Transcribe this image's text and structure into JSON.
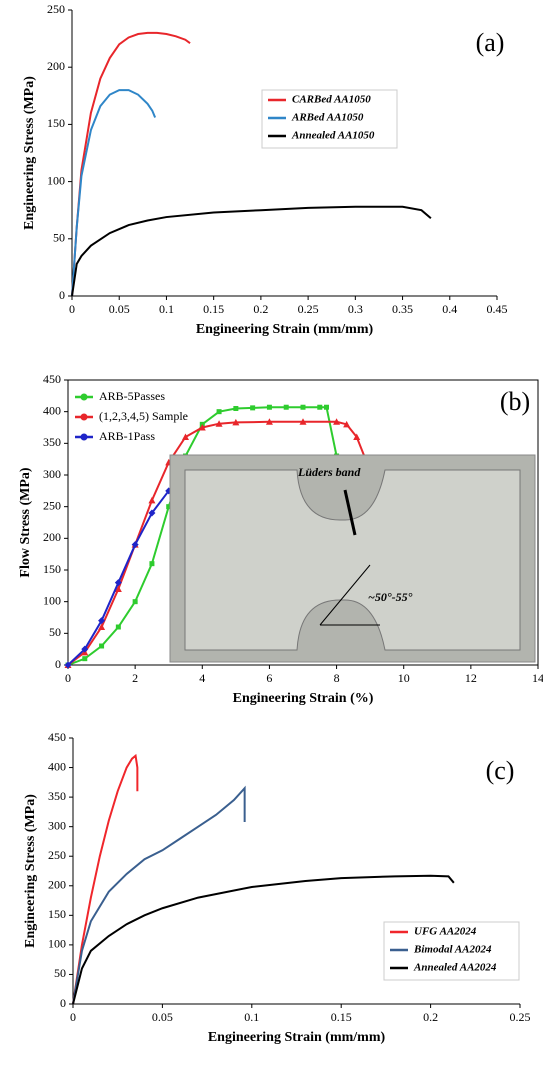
{
  "chart_data": [
    {
      "type": "line",
      "panel_label": "(a)",
      "x_label": "Engineering Strain (mm/mm)",
      "y_label": "Engineering Stress (MPa)",
      "xlim": [
        0,
        0.45
      ],
      "xticks": [
        0,
        0.05,
        0.1,
        0.15,
        0.2,
        0.25,
        0.3,
        0.35,
        0.4,
        0.45
      ],
      "ylim": [
        0,
        250
      ],
      "yticks": [
        0,
        50,
        100,
        150,
        200,
        250
      ],
      "legend": "upper center",
      "series": [
        {
          "name": "CARBed AA1050",
          "color": "#e8262b",
          "x": [
            0,
            0.005,
            0.01,
            0.02,
            0.03,
            0.04,
            0.05,
            0.06,
            0.07,
            0.08,
            0.09,
            0.1,
            0.11,
            0.12,
            0.125
          ],
          "values": [
            0,
            60,
            110,
            160,
            190,
            208,
            220,
            226,
            229,
            230,
            230,
            229,
            227,
            224,
            221
          ]
        },
        {
          "name": "ARBed AA1050",
          "color": "#2f86c8",
          "x": [
            0,
            0.005,
            0.01,
            0.02,
            0.03,
            0.04,
            0.05,
            0.06,
            0.07,
            0.08,
            0.085,
            0.088
          ],
          "values": [
            0,
            60,
            105,
            145,
            166,
            176,
            180,
            180,
            176,
            168,
            162,
            156
          ]
        },
        {
          "name": "Annealed AA1050",
          "color": "#000000",
          "x": [
            0,
            0.005,
            0.01,
            0.02,
            0.04,
            0.06,
            0.08,
            0.1,
            0.15,
            0.2,
            0.25,
            0.3,
            0.35,
            0.37,
            0.38
          ],
          "values": [
            0,
            28,
            35,
            44,
            55,
            62,
            66,
            69,
            73,
            75,
            77,
            78,
            78,
            75,
            68
          ]
        }
      ]
    },
    {
      "type": "line",
      "panel_label": "(b)",
      "x_label": "Engineering Strain (%)",
      "y_label": "Flow Stress (MPa)",
      "xlim": [
        0,
        14
      ],
      "xticks": [
        0,
        2,
        4,
        6,
        8,
        10,
        12,
        14
      ],
      "ylim": [
        0,
        450
      ],
      "yticks": [
        0,
        50,
        100,
        150,
        200,
        250,
        300,
        350,
        400,
        450
      ],
      "legend": "upper left",
      "inset_labels": [
        "Lüders band",
        "~50°-55°"
      ],
      "series": [
        {
          "name": "ARB-5Passes",
          "color": "#2ecc2e",
          "marker": "square",
          "x": [
            0,
            0.5,
            1,
            1.5,
            2,
            2.5,
            3,
            3.5,
            4,
            4.5,
            5,
            5.5,
            6,
            6.5,
            7,
            7.5,
            7.7,
            8,
            8.3
          ],
          "values": [
            0,
            10,
            30,
            60,
            100,
            160,
            250,
            330,
            380,
            400,
            405,
            406,
            407,
            407,
            407,
            407,
            407,
            330,
            250
          ]
        },
        {
          "name": "(1,2,3,4,5) Sample",
          "color": "#e8262b",
          "marker": "triangle",
          "x": [
            0,
            0.5,
            1,
            1.5,
            2,
            2.5,
            3,
            3.5,
            4,
            4.5,
            5,
            6,
            7,
            8,
            8.3,
            8.6,
            8.9,
            9.2
          ],
          "values": [
            0,
            20,
            60,
            120,
            190,
            260,
            320,
            360,
            375,
            381,
            383,
            384,
            384,
            384,
            380,
            360,
            320,
            280
          ]
        },
        {
          "name": "ARB-1Pass",
          "color": "#1f25c8",
          "marker": "diamond",
          "x": [
            0,
            0.5,
            1,
            1.5,
            2,
            2.5,
            3,
            3.5,
            4,
            5,
            6,
            7,
            8,
            9,
            9.5,
            10,
            10.3,
            10.5
          ],
          "values": [
            0,
            25,
            70,
            130,
            190,
            240,
            275,
            290,
            300,
            307,
            310,
            311,
            310,
            305,
            295,
            275,
            255,
            240
          ]
        }
      ]
    },
    {
      "type": "line",
      "panel_label": "(c)",
      "x_label": "Engineering Strain (mm/mm)",
      "y_label": "Engineering Stress (MPa)",
      "xlim": [
        0,
        0.25
      ],
      "xticks": [
        0,
        0.05,
        0.1,
        0.15,
        0.2,
        0.25
      ],
      "ylim": [
        0,
        450
      ],
      "yticks": [
        0,
        50,
        100,
        150,
        200,
        250,
        300,
        350,
        400,
        450
      ],
      "legend": "lower right",
      "series": [
        {
          "name": "UFG AA2024",
          "color": "#f0262b",
          "x": [
            0,
            0.005,
            0.01,
            0.015,
            0.02,
            0.025,
            0.03,
            0.033,
            0.035,
            0.036,
            0.036
          ],
          "values": [
            0,
            100,
            180,
            250,
            310,
            360,
            400,
            415,
            420,
            400,
            360
          ]
        },
        {
          "name": "Bimodal AA2024",
          "color": "#3a5f8f",
          "x": [
            0,
            0.005,
            0.01,
            0.02,
            0.03,
            0.04,
            0.05,
            0.06,
            0.07,
            0.08,
            0.09,
            0.096,
            0.096
          ],
          "values": [
            0,
            90,
            140,
            190,
            220,
            245,
            260,
            280,
            300,
            320,
            345,
            365,
            308
          ]
        },
        {
          "name": "Annealed AA2024",
          "color": "#000000",
          "x": [
            0,
            0.005,
            0.01,
            0.02,
            0.03,
            0.04,
            0.05,
            0.07,
            0.1,
            0.13,
            0.15,
            0.18,
            0.2,
            0.21,
            0.213
          ],
          "values": [
            0,
            60,
            90,
            115,
            135,
            150,
            162,
            180,
            198,
            208,
            213,
            216,
            217,
            216,
            205
          ]
        }
      ]
    }
  ]
}
